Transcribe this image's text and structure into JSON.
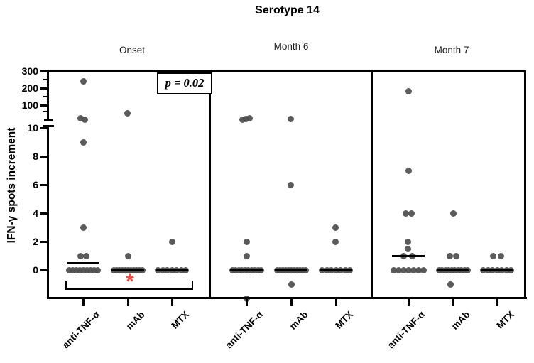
{
  "colors": {
    "dot": "#4d4d4d",
    "axis": "#000000",
    "significance": "#f4483c"
  },
  "chart_data": {
    "type": "scatter",
    "title": "Serotype 14",
    "ylabel": "IFN-γ spots increment",
    "y_axis": {
      "linear_ticks": [
        0,
        2,
        4,
        6,
        8,
        10
      ],
      "compressed_ticks": [
        100,
        200,
        300
      ],
      "minor_upper_ticks": [
        50,
        150,
        250
      ],
      "break_between": [
        10,
        100
      ]
    },
    "group_labels": [
      "anti-TNF-α",
      "mAb",
      "MTX"
    ],
    "panels": [
      {
        "label": "Onset",
        "annotation": "p = 0.02",
        "significance": "*",
        "bracket_groups": [
          "anti-TNF-α",
          "MTX"
        ],
        "significance_under": "mAb",
        "groups": [
          {
            "label": "anti-TNF-α",
            "median": 0.5,
            "points": [
              [
                240,
                0
              ],
              [
                25,
                -4
              ],
              [
                20,
                2
              ],
              [
                9,
                0
              ],
              [
                3,
                0
              ],
              [
                1,
                -4
              ],
              [
                1,
                4
              ],
              [
                0,
                -20
              ],
              [
                0,
                -15
              ],
              [
                0,
                -10
              ],
              [
                0,
                -5
              ],
              [
                0,
                0
              ],
              [
                0,
                5
              ],
              [
                0,
                10
              ],
              [
                0,
                15
              ],
              [
                0,
                20
              ]
            ]
          },
          {
            "label": "mAb",
            "median": 0,
            "points": [
              [
                40,
                -1
              ],
              [
                1,
                0
              ],
              [
                0,
                -20
              ],
              [
                0,
                -16
              ],
              [
                0,
                -12
              ],
              [
                0,
                -8
              ],
              [
                0,
                -4
              ],
              [
                0,
                0
              ],
              [
                0,
                4
              ],
              [
                0,
                8
              ],
              [
                0,
                12
              ],
              [
                0,
                16
              ],
              [
                0,
                20
              ]
            ]
          },
          {
            "label": "MTX",
            "median": 0,
            "points": [
              [
                2,
                0
              ],
              [
                0,
                -19.5
              ],
              [
                0,
                -13
              ],
              [
                0,
                -6.5
              ],
              [
                0,
                0
              ],
              [
                0,
                6.5
              ],
              [
                0,
                13
              ],
              [
                0,
                19.5
              ]
            ]
          }
        ]
      },
      {
        "label": "Month 6",
        "groups": [
          {
            "label": "anti-TNF-α",
            "median": 0,
            "points": [
              [
                20,
                -6
              ],
              [
                23,
                -1
              ],
              [
                25,
                4
              ],
              [
                2,
                0
              ],
              [
                1,
                0
              ],
              [
                0,
                -20
              ],
              [
                0,
                -15.5
              ],
              [
                0,
                -11
              ],
              [
                0,
                -6.5
              ],
              [
                0,
                -2
              ],
              [
                0,
                2.5
              ],
              [
                0,
                7
              ],
              [
                0,
                11.5
              ],
              [
                0,
                16
              ],
              [
                0,
                20
              ],
              [
                -2,
                0
              ]
            ]
          },
          {
            "label": "mAb",
            "median": 0,
            "points": [
              [
                22,
                -1
              ],
              [
                6,
                -1
              ],
              [
                0,
                -20
              ],
              [
                0,
                -16
              ],
              [
                0,
                -12
              ],
              [
                0,
                -8
              ],
              [
                0,
                -4
              ],
              [
                0,
                0
              ],
              [
                0,
                4
              ],
              [
                0,
                8
              ],
              [
                0,
                12
              ],
              [
                0,
                16
              ],
              [
                0,
                20
              ],
              [
                -1,
                0
              ]
            ]
          },
          {
            "label": "MTX",
            "median": 0,
            "points": [
              [
                3,
                -1
              ],
              [
                2,
                -1
              ],
              [
                0,
                -19.5
              ],
              [
                0,
                -13
              ],
              [
                0,
                -6.5
              ],
              [
                0,
                0
              ],
              [
                0,
                6.5
              ],
              [
                0,
                13
              ],
              [
                0,
                19.5
              ]
            ]
          }
        ]
      },
      {
        "label": "Month 7",
        "groups": [
          {
            "label": "anti-TNF-α",
            "median": 1,
            "points": [
              [
                180,
                0
              ],
              [
                7,
                0
              ],
              [
                4,
                -4
              ],
              [
                4,
                4
              ],
              [
                2,
                -1
              ],
              [
                1.5,
                -1
              ],
              [
                1,
                -7
              ],
              [
                1,
                5
              ],
              [
                0,
                -21
              ],
              [
                0,
                -14
              ],
              [
                0,
                -7
              ],
              [
                0,
                0
              ],
              [
                0,
                7
              ],
              [
                0,
                14
              ],
              [
                0,
                21
              ]
            ]
          },
          {
            "label": "mAb",
            "median": 0,
            "points": [
              [
                4,
                0
              ],
              [
                1,
                -5
              ],
              [
                1,
                4
              ],
              [
                0,
                -20
              ],
              [
                0,
                -15.5
              ],
              [
                0,
                -11
              ],
              [
                0,
                -6.5
              ],
              [
                0,
                -2
              ],
              [
                0,
                2.5
              ],
              [
                0,
                7
              ],
              [
                0,
                11.5
              ],
              [
                0,
                16
              ],
              [
                0,
                20
              ],
              [
                -1,
                -4
              ]
            ]
          },
          {
            "label": "MTX",
            "median": 0,
            "points": [
              [
                1,
                -6
              ],
              [
                1,
                5
              ],
              [
                0,
                -19.5
              ],
              [
                0,
                -13
              ],
              [
                0,
                -6.5
              ],
              [
                0,
                0
              ],
              [
                0,
                6.5
              ],
              [
                0,
                13
              ],
              [
                0,
                19.5
              ]
            ]
          }
        ]
      }
    ]
  }
}
